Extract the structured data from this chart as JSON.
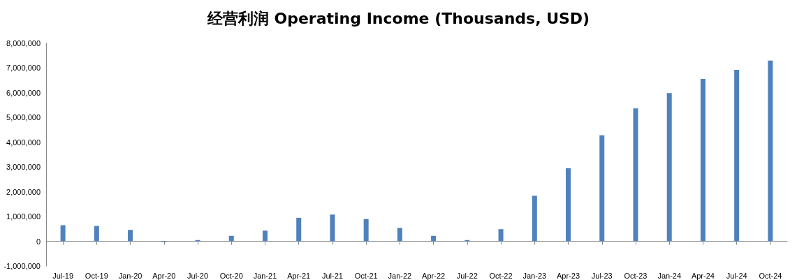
{
  "chart_data": {
    "type": "bar",
    "title": "经营利润 Operating Income (Thousands, USD)",
    "categories": [
      "Jul-19",
      "Oct-19",
      "Jan-20",
      "Apr-20",
      "Jul-20",
      "Oct-20",
      "Jan-21",
      "Apr-21",
      "Jul-21",
      "Oct-21",
      "Jan-22",
      "Apr-22",
      "Jul-22",
      "Oct-22",
      "Jan-23",
      "Apr-23",
      "Jul-23",
      "Oct-23",
      "Jan-24",
      "Apr-24",
      "Jul-24",
      "Oct-24"
    ],
    "values": [
      650000,
      620000,
      460000,
      -30000,
      50000,
      220000,
      430000,
      950000,
      1080000,
      900000,
      540000,
      220000,
      50000,
      490000,
      1840000,
      2950000,
      4280000,
      5370000,
      5990000,
      6560000,
      6930000,
      7300000
    ],
    "color": "#4f81bd",
    "ylim": [
      -1000000,
      8000000
    ],
    "yticks": [
      {
        "value": -1000000,
        "label": "-1,000,000"
      },
      {
        "value": 0,
        "label": "0"
      },
      {
        "value": 1000000,
        "label": "1,000,000"
      },
      {
        "value": 2000000,
        "label": "2,000,000"
      },
      {
        "value": 3000000,
        "label": "3,000,000"
      },
      {
        "value": 4000000,
        "label": "4,000,000"
      },
      {
        "value": 5000000,
        "label": "5,000,000"
      },
      {
        "value": 6000000,
        "label": "6,000,000"
      },
      {
        "value": 7000000,
        "label": "7,000,000"
      },
      {
        "value": 8000000,
        "label": "8,000,000"
      }
    ],
    "data_labels": false
  }
}
